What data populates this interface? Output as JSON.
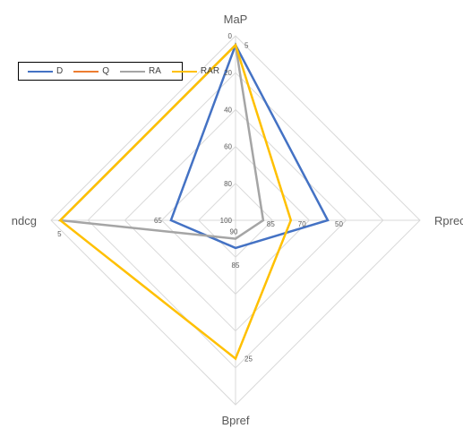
{
  "chart_data": {
    "type": "radar",
    "axes": [
      {
        "name": "MaP",
        "direction": "up"
      },
      {
        "name": "Rprec",
        "direction": "right"
      },
      {
        "name": "Bpref",
        "direction": "down"
      },
      {
        "name": "ndcg",
        "direction": "left"
      }
    ],
    "radial_ticks": [
      "0",
      "20",
      "40",
      "60",
      "80",
      "100"
    ],
    "value_labels": [
      {
        "text": "5",
        "axis": "MaP"
      },
      {
        "text": "50",
        "axis": "Rprec"
      },
      {
        "text": "70",
        "axis": "Rprec"
      },
      {
        "text": "85",
        "axis": "Rprec"
      },
      {
        "text": "25",
        "axis": "Bpref"
      },
      {
        "text": "85",
        "axis": "Bpref"
      },
      {
        "text": "90",
        "axis": "Bpref"
      },
      {
        "text": "65",
        "axis": "ndcg"
      },
      {
        "text": "5",
        "axis": "ndcg"
      }
    ],
    "series": [
      {
        "name": "D",
        "color": "#4472C4",
        "values": [
          5,
          50,
          85,
          65
        ]
      },
      {
        "name": "Q",
        "color": "#ED7D31",
        "values": [
          100,
          100,
          100,
          100
        ]
      },
      {
        "name": "RA",
        "color": "#A5A5A5",
        "values": [
          5,
          85,
          90,
          5
        ]
      },
      {
        "name": "RAR",
        "color": "#FFC000",
        "values": [
          5,
          70,
          25,
          5
        ]
      }
    ],
    "legend_position": "top-left",
    "grid": true
  }
}
